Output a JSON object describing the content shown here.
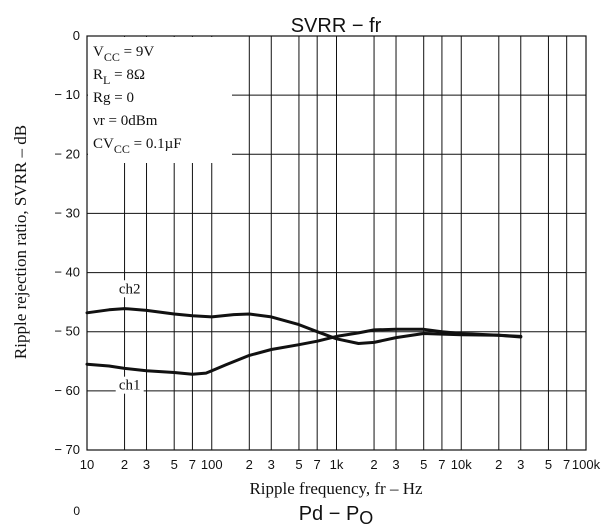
{
  "chart_data": {
    "type": "line",
    "title": "SVRR − fr",
    "next_title": {
      "main": "Pd − P",
      "sub": "O"
    },
    "xlabel": "Ripple frequency, fr  –  Hz",
    "ylabel": "Ripple rejection ratio, SVRR  –  dB",
    "x_scale": "log",
    "xlim": [
      10,
      100000
    ],
    "ylim": [
      -70,
      0
    ],
    "grid": true,
    "x_tick_labels": [
      {
        "value": 10,
        "label": "10",
        "major": true
      },
      {
        "value": 20,
        "label": "2"
      },
      {
        "value": 30,
        "label": "3"
      },
      {
        "value": 50,
        "label": "5"
      },
      {
        "value": 70,
        "label": "7"
      },
      {
        "value": 100,
        "label": "100",
        "major": true
      },
      {
        "value": 200,
        "label": "2"
      },
      {
        "value": 300,
        "label": "3"
      },
      {
        "value": 500,
        "label": "5"
      },
      {
        "value": 700,
        "label": "7"
      },
      {
        "value": 1000,
        "label": "1k",
        "major": true
      },
      {
        "value": 2000,
        "label": "2"
      },
      {
        "value": 3000,
        "label": "3"
      },
      {
        "value": 5000,
        "label": "5"
      },
      {
        "value": 7000,
        "label": "7"
      },
      {
        "value": 10000,
        "label": "10k",
        "major": true
      },
      {
        "value": 20000,
        "label": "2"
      },
      {
        "value": 30000,
        "label": "3"
      },
      {
        "value": 50000,
        "label": "5"
      },
      {
        "value": 70000,
        "label": "7"
      },
      {
        "value": 100000,
        "label": "100k",
        "major": true
      }
    ],
    "y_tick_labels": [
      {
        "value": 0,
        "label": "0"
      },
      {
        "value": -10,
        "label": "− 10"
      },
      {
        "value": -20,
        "label": "− 20"
      },
      {
        "value": -30,
        "label": "− 30"
      },
      {
        "value": -40,
        "label": "− 40"
      },
      {
        "value": -50,
        "label": "− 50"
      },
      {
        "value": -60,
        "label": "− 60"
      },
      {
        "value": -70,
        "label": "− 70"
      }
    ],
    "conditions": [
      {
        "main": "V",
        "sub": "CC",
        "rest": " = 9V"
      },
      {
        "main": "R",
        "sub": "L",
        "rest": " = 8Ω"
      },
      {
        "main": "Rg = 0",
        "sub": "",
        "rest": ""
      },
      {
        "main": "νr = 0dBm",
        "sub": "",
        "rest": ""
      },
      {
        "main": "CV",
        "sub": "CC",
        "rest": " = 0.1µF"
      }
    ],
    "series": [
      {
        "name": "ch2",
        "label_at": {
          "x": 22,
          "y": -43.5
        },
        "points": [
          [
            10,
            -46.8
          ],
          [
            15,
            -46.3
          ],
          [
            20,
            -46.1
          ],
          [
            30,
            -46.4
          ],
          [
            50,
            -47.0
          ],
          [
            70,
            -47.3
          ],
          [
            100,
            -47.5
          ],
          [
            150,
            -47.1
          ],
          [
            200,
            -47.0
          ],
          [
            300,
            -47.5
          ],
          [
            500,
            -48.8
          ],
          [
            700,
            -50.0
          ],
          [
            1000,
            -51.2
          ],
          [
            1500,
            -52.0
          ],
          [
            2000,
            -51.8
          ],
          [
            3000,
            -51.0
          ],
          [
            5000,
            -50.3
          ],
          [
            7000,
            -50.4
          ],
          [
            10000,
            -50.5
          ],
          [
            20000,
            -50.6
          ],
          [
            30000,
            -50.8
          ]
        ]
      },
      {
        "name": "ch1",
        "label_at": {
          "x": 22,
          "y": -59.8
        },
        "points": [
          [
            10,
            -55.5
          ],
          [
            15,
            -55.8
          ],
          [
            20,
            -56.2
          ],
          [
            30,
            -56.6
          ],
          [
            50,
            -56.9
          ],
          [
            70,
            -57.2
          ],
          [
            90,
            -57.0
          ],
          [
            100,
            -56.6
          ],
          [
            130,
            -55.6
          ],
          [
            200,
            -54.0
          ],
          [
            300,
            -53.0
          ],
          [
            500,
            -52.2
          ],
          [
            700,
            -51.6
          ],
          [
            1000,
            -50.8
          ],
          [
            1500,
            -50.2
          ],
          [
            2000,
            -49.7
          ],
          [
            3000,
            -49.6
          ],
          [
            5000,
            -49.6
          ],
          [
            7000,
            -50.0
          ],
          [
            10000,
            -50.3
          ],
          [
            20000,
            -50.6
          ],
          [
            30000,
            -50.9
          ]
        ]
      }
    ]
  }
}
